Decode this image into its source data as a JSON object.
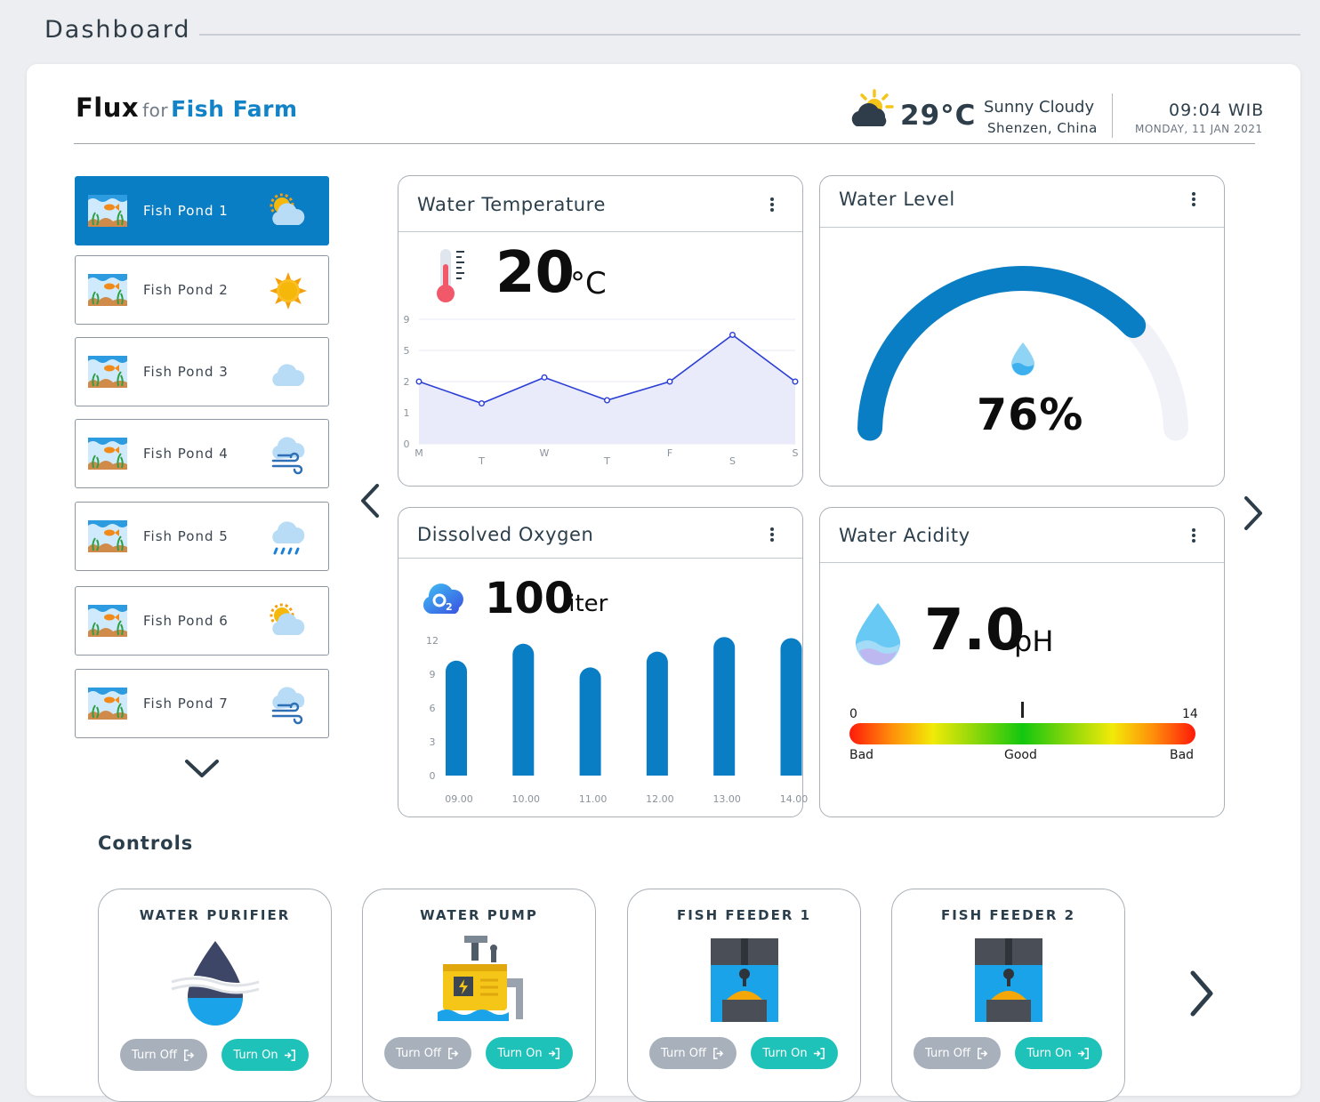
{
  "page": {
    "title": "Dashboard"
  },
  "header": {
    "brand": "Flux",
    "brand_for": "for",
    "brand_product": "Fish Farm",
    "temperature": "29°C",
    "condition": "Sunny Cloudy",
    "location": "Shenzen, China",
    "time": "09:04 WIB",
    "date": "MONDAY, 11 JAN 2021",
    "weather_icon": "sunny-cloudy-icon"
  },
  "ponds": [
    {
      "label": "Fish Pond 1",
      "weather": "sunny-cloudy-icon",
      "active": true
    },
    {
      "label": "Fish Pond 2",
      "weather": "sun-icon",
      "active": false
    },
    {
      "label": "Fish Pond 3",
      "weather": "cloud-icon",
      "active": false
    },
    {
      "label": "Fish Pond 4",
      "weather": "windy-cloud-icon",
      "active": false
    },
    {
      "label": "Fish Pond 5",
      "weather": "rain-cloud-icon",
      "active": false
    },
    {
      "label": "Fish Pond 6",
      "weather": "sunny-cloudy-icon",
      "active": false
    },
    {
      "label": "Fish Pond 7",
      "weather": "windy-cloud-icon",
      "active": false
    }
  ],
  "widgets": {
    "water_temperature": {
      "title": "Water Temperature",
      "value": "20",
      "unit": "°C",
      "icon": "thermometer-icon"
    },
    "water_level": {
      "title": "Water Level",
      "value": "76%",
      "icon": "water-drop-icon"
    },
    "dissolved_oxygen": {
      "title": "Dissolved Oxygen",
      "value": "100",
      "unit": "liter",
      "icon": "oxygen-cloud-icon"
    },
    "water_acidity": {
      "title": "Water Acidity",
      "value": "7.0",
      "unit": "pH",
      "scale_min": "0",
      "scale_max": "14",
      "label_left": "Bad",
      "label_mid": "Good",
      "label_right": "Bad",
      "marker_value": 7
    }
  },
  "controls": {
    "title": "Controls",
    "items": [
      {
        "title": "WATER PURIFIER",
        "icon": "water-purifier-icon",
        "off_label": "Turn Off",
        "on_label": "Turn On"
      },
      {
        "title": "WATER PUMP",
        "icon": "water-pump-icon",
        "off_label": "Turn Off",
        "on_label": "Turn On"
      },
      {
        "title": "FISH FEEDER 1",
        "icon": "fish-feeder-icon",
        "off_label": "Turn Off",
        "on_label": "Turn On"
      },
      {
        "title": "FISH FEEDER 2",
        "icon": "fish-feeder-icon",
        "off_label": "Turn Off",
        "on_label": "Turn On"
      }
    ]
  },
  "colors": {
    "primary": "#0a7ec4",
    "accent": "#1fc2b8",
    "muted": "#a7b0bb",
    "line": "#2b3fd6",
    "gauge_track": "#f1f1f8"
  },
  "chart_data": [
    {
      "type": "line",
      "categories": [
        "M",
        "T",
        "W",
        "T",
        "F",
        "S",
        "S"
      ],
      "values": [
        2,
        1.3,
        2.4,
        1.4,
        2,
        7,
        2
      ],
      "y_ticks": [
        "0",
        "1",
        "2",
        "5",
        "9"
      ]
    },
    {
      "type": "bar",
      "categories": [
        "09.00",
        "10.00",
        "11.00",
        "12.00",
        "13.00",
        "14.00"
      ],
      "values": [
        10.2,
        11.7,
        9.6,
        11,
        12.3,
        12.2
      ],
      "y_ticks": [
        "0",
        "3",
        "6",
        "9",
        "12"
      ],
      "ylim": [
        0,
        12
      ]
    },
    {
      "type": "gauge",
      "value": 76,
      "ylim": [
        0,
        100
      ]
    }
  ]
}
